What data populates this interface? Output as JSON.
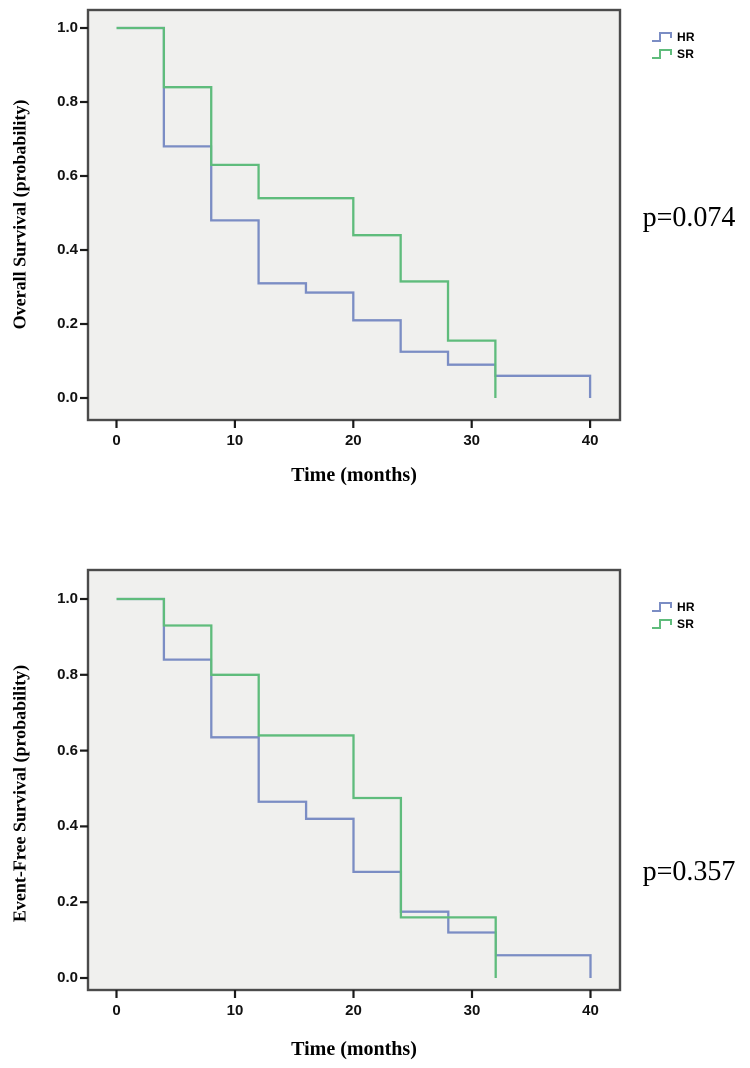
{
  "page": {
    "background": "#ffffff"
  },
  "chart_data": [
    {
      "type": "line",
      "subtype": "kaplan-meier-step",
      "title": "",
      "xlabel": "Time (months)",
      "ylabel": "Overall Survival (probability)",
      "annotation": "p=0.074",
      "xlim": [
        0,
        40
      ],
      "ylim": [
        0.0,
        1.0
      ],
      "grid": false,
      "legend_position": "outside-top-right",
      "x_ticks": [
        0,
        10,
        20,
        30,
        40
      ],
      "x_tick_labels": [
        "0",
        "10",
        "20",
        "30",
        "40"
      ],
      "y_ticks": [
        1.0,
        0.8,
        0.6,
        0.4,
        0.2,
        0.0
      ],
      "y_tick_labels": [
        "1.0",
        "0.8",
        "0.6",
        "0.4",
        "0.2",
        "0.0"
      ],
      "plot_background": "#f0f0ee",
      "frame_color": "#4b4b4b",
      "series": [
        {
          "name": "HR",
          "color": "#7b8dc4",
          "steps": [
            [
              0,
              1.0
            ],
            [
              4,
              0.68
            ],
            [
              8,
              0.48
            ],
            [
              12,
              0.31
            ],
            [
              16,
              0.285
            ],
            [
              20,
              0.21
            ],
            [
              24,
              0.125
            ],
            [
              28,
              0.09
            ],
            [
              32,
              0.06
            ],
            [
              40,
              0.0
            ]
          ]
        },
        {
          "name": "SR",
          "color": "#5fbc7c",
          "steps": [
            [
              0,
              1.0
            ],
            [
              4,
              0.84
            ],
            [
              8,
              0.63
            ],
            [
              12,
              0.54
            ],
            [
              20,
              0.44
            ],
            [
              24,
              0.315
            ],
            [
              28,
              0.155
            ],
            [
              32,
              0.0
            ]
          ]
        }
      ]
    },
    {
      "type": "line",
      "subtype": "kaplan-meier-step",
      "title": "",
      "xlabel": "Time (months)",
      "ylabel": "Event-Free Survival (probability)",
      "annotation": "p=0.357",
      "xlim": [
        0,
        40
      ],
      "ylim": [
        0.0,
        1.0
      ],
      "grid": false,
      "legend_position": "outside-top-right",
      "x_ticks": [
        0,
        10,
        20,
        30,
        40
      ],
      "x_tick_labels": [
        "0",
        "10",
        "20",
        "30",
        "40"
      ],
      "y_ticks": [
        1.0,
        0.8,
        0.6,
        0.4,
        0.2,
        0.0
      ],
      "y_tick_labels": [
        "1.0",
        "0.8",
        "0.6",
        "0.4",
        "0.2",
        "0.0"
      ],
      "plot_background": "#f0f0ee",
      "frame_color": "#4b4b4b",
      "series": [
        {
          "name": "HR",
          "color": "#7b8dc4",
          "steps": [
            [
              0,
              1.0
            ],
            [
              4,
              0.84
            ],
            [
              8,
              0.635
            ],
            [
              12,
              0.465
            ],
            [
              16,
              0.42
            ],
            [
              20,
              0.28
            ],
            [
              24,
              0.175
            ],
            [
              28,
              0.12
            ],
            [
              32,
              0.06
            ],
            [
              40,
              0.0
            ]
          ]
        },
        {
          "name": "SR",
          "color": "#5fbc7c",
          "steps": [
            [
              0,
              1.0
            ],
            [
              4,
              0.93
            ],
            [
              8,
              0.8
            ],
            [
              12,
              0.64
            ],
            [
              20,
              0.475
            ],
            [
              24,
              0.16
            ],
            [
              32,
              0.0
            ]
          ]
        }
      ]
    }
  ]
}
